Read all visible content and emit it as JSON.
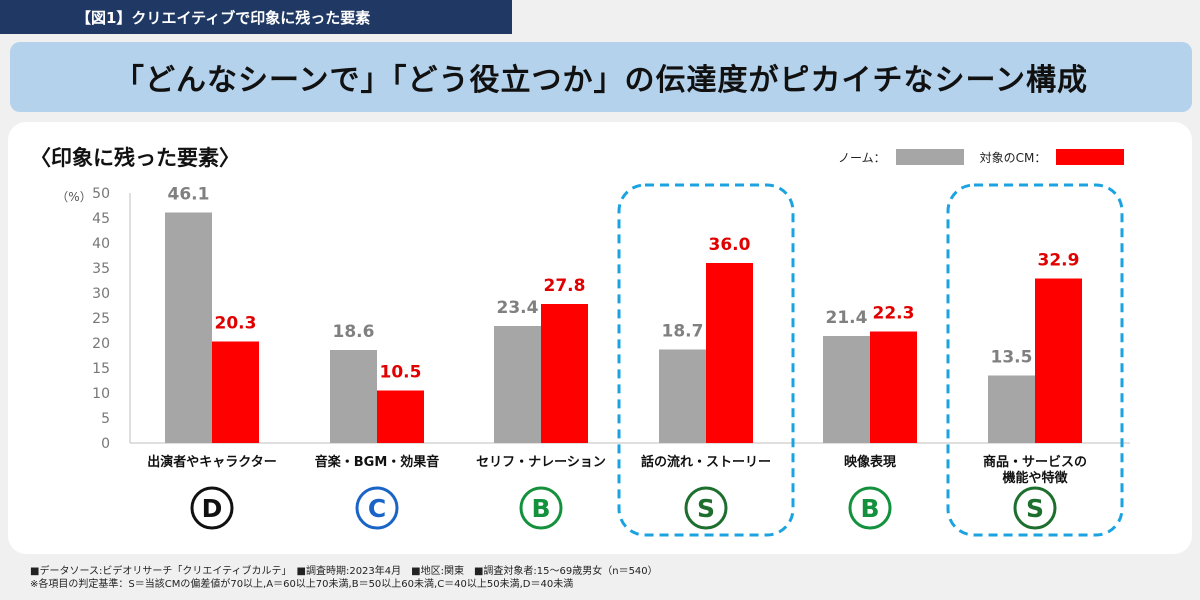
{
  "figure_tag": "【図1】クリエイティブで印象に残った要素",
  "headline": "「どんなシーンで」「どう役立つか」の伝達度がピカイチなシーン構成",
  "section_title": "〈印象に残った要素〉",
  "legend": {
    "norm_label": "ノーム：",
    "target_label": "対象のCM：",
    "norm_color": "#a6a6a6",
    "target_color": "#ff0000"
  },
  "chart_data": {
    "type": "bar",
    "ylabel": "（%）",
    "ylim": [
      0,
      50
    ],
    "yticks": [
      0,
      5,
      10,
      15,
      20,
      25,
      30,
      35,
      40,
      45,
      50
    ],
    "categories": [
      [
        "出演者やキャラクター"
      ],
      [
        "音楽・BGM・効果音"
      ],
      [
        "セリフ・ナレーション"
      ],
      [
        "話の流れ・ストーリー"
      ],
      [
        "映像表現"
      ],
      [
        "商品・サービスの",
        "機能や特徴"
      ]
    ],
    "series": [
      {
        "name": "ノーム",
        "color": "#a6a6a6",
        "label_color": "#808080",
        "values": [
          46.1,
          18.6,
          23.4,
          18.7,
          21.4,
          13.5
        ]
      },
      {
        "name": "対象のCM",
        "color": "#ff0000",
        "label_color": "#e00000",
        "values": [
          20.3,
          10.5,
          27.8,
          36.0,
          22.3,
          32.9
        ]
      }
    ],
    "value_labels": [
      [
        "46.1",
        "18.6",
        "23.4",
        "18.7",
        "21.4",
        "13.5"
      ],
      [
        "20.3",
        "10.5",
        "27.8",
        "36.0",
        "22.3",
        "32.9"
      ]
    ],
    "grades": [
      "D",
      "C",
      "B",
      "S",
      "B",
      "S"
    ],
    "grade_colors": {
      "D": "#111111",
      "C": "#1a64c8",
      "B": "#14913c",
      "S": "#1e6e2d"
    },
    "highlighted_categories": [
      3,
      5
    ],
    "highlight_color": "#1aa3e0"
  },
  "footer": {
    "line1": "■データソース:ビデオリサーチ「クリエイティブカルテ」　■調査時期:2023年4月　■地区:関東　■調査対象者:15～69歳男女（n＝540）",
    "line2": "※各項目の判定基準：S＝当該CMの偏差値が70以上,A＝60以上70未満,B＝50以上60未満,C＝40以上50未満,D＝40未満"
  }
}
